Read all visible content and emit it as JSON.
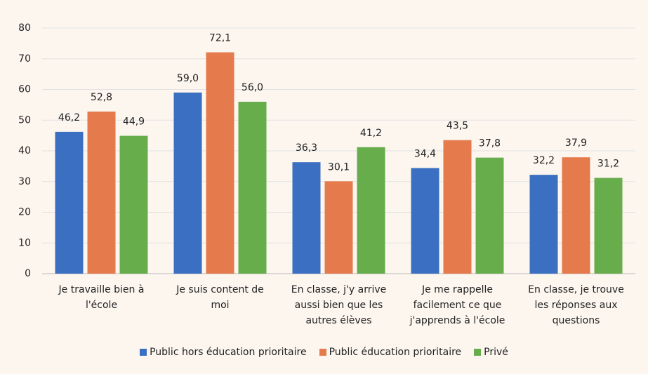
{
  "chart_data": {
    "type": "bar",
    "categories": [
      "Je travaille bien à l'école",
      "Je suis content de moi",
      "En classe, j'y arrive aussi bien que les autres élèves",
      "Je me rappelle facilement ce que j'apprends à l'école",
      "En classe, je trouve les réponses aux questions"
    ],
    "series": [
      {
        "name": "Public hors éducation prioritaire",
        "color": "#3b6fc2",
        "values": [
          46.2,
          59.0,
          36.3,
          34.4,
          32.2
        ],
        "value_labels": [
          "46,2",
          "59,0",
          "36,3",
          "34,4",
          "32,2"
        ]
      },
      {
        "name": "Public éducation prioritaire",
        "color": "#e57a4c",
        "values": [
          52.8,
          72.1,
          30.1,
          43.5,
          37.9
        ],
        "value_labels": [
          "52,8",
          "72,1",
          "30,1",
          "43,5",
          "37,9"
        ]
      },
      {
        "name": "Privé",
        "color": "#67ad4b",
        "values": [
          44.9,
          56.0,
          41.2,
          37.8,
          31.2
        ],
        "value_labels": [
          "44,9",
          "56,0",
          "41,2",
          "37,8",
          "31,2"
        ]
      }
    ],
    "ylim": [
      0,
      80
    ],
    "yticks": [
      0,
      10,
      20,
      30,
      40,
      50,
      60,
      70,
      80
    ],
    "grid": true,
    "legend": "bottom"
  }
}
